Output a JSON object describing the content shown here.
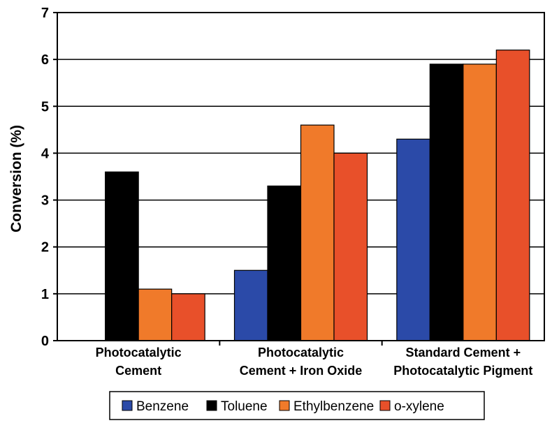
{
  "chart_data": {
    "type": "bar",
    "title": "",
    "xlabel": "",
    "ylabel": "Conversion (%)",
    "ylim": [
      0,
      7
    ],
    "yticks": [
      0,
      1,
      2,
      3,
      4,
      5,
      6,
      7
    ],
    "grid": true,
    "legend_position": "bottom",
    "categories": [
      [
        "Photocatalytic",
        "Cement"
      ],
      [
        "Photocatalytic",
        "Cement + Iron Oxide"
      ],
      [
        "Standard Cement +",
        "Photocatalytic Pigment"
      ]
    ],
    "series": [
      {
        "name": "Benzene",
        "color": "#2b4aa8",
        "values": [
          0,
          1.5,
          4.3
        ]
      },
      {
        "name": "Toluene",
        "color": "#000000",
        "values": [
          3.6,
          3.3,
          5.9
        ]
      },
      {
        "name": "Ethylbenzene",
        "color": "#f07a2a",
        "values": [
          1.1,
          4.6,
          5.9
        ]
      },
      {
        "name": "o-xylene",
        "color": "#e8502a",
        "values": [
          1.0,
          4.0,
          6.2
        ]
      }
    ]
  }
}
